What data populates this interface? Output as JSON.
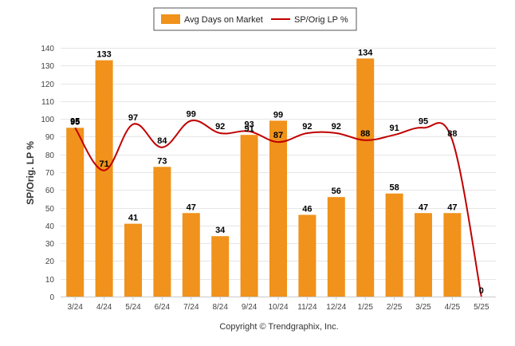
{
  "chart_data": {
    "type": "bar",
    "categories": [
      "3/24",
      "4/24",
      "5/24",
      "6/24",
      "7/24",
      "8/24",
      "9/24",
      "10/24",
      "11/24",
      "12/24",
      "1/25",
      "2/25",
      "3/25",
      "4/25",
      "5/25"
    ],
    "series": [
      {
        "name": "Avg Days on Market",
        "type": "bar",
        "color": "#f0921b",
        "values": [
          95,
          133,
          41,
          73,
          47,
          34,
          91,
          99,
          46,
          56,
          134,
          58,
          47,
          47,
          0
        ],
        "labels": [
          "95",
          "133",
          "41",
          "73",
          "47",
          "34",
          "91",
          "99",
          "46",
          "56",
          "134",
          "58",
          "47",
          "47",
          "0"
        ]
      },
      {
        "name": "SP/Orig LP %",
        "type": "line",
        "color": "#c00000",
        "values": [
          95,
          71,
          97,
          84,
          99,
          92,
          93,
          87,
          92,
          92,
          88,
          91,
          95,
          88,
          0
        ],
        "labels": [
          "95",
          "71",
          "97",
          "84",
          "99",
          "92",
          "93",
          "87",
          "92",
          "92",
          "88",
          "91",
          "95",
          "88",
          "0"
        ]
      }
    ],
    "ylabel": "SP/Orig. LP %",
    "ylim": [
      0,
      140
    ],
    "yticks": [
      0,
      10,
      20,
      30,
      40,
      50,
      60,
      70,
      80,
      90,
      100,
      110,
      120,
      130,
      140
    ],
    "grid": true,
    "legend": "top-center",
    "footer": "Copyright © Trendgraphix, Inc."
  }
}
